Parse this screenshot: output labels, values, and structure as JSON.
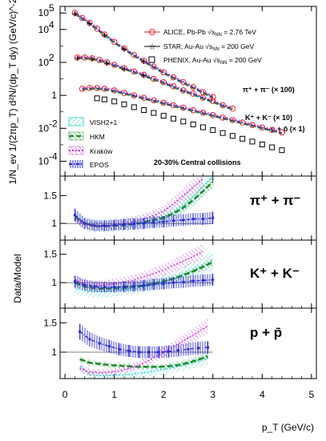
{
  "chart_data": {
    "type": "scatter",
    "x_label": "p_T (GeV/c)",
    "x_ticks": [
      "0",
      "1",
      "2",
      "3",
      "4",
      "5"
    ],
    "xlim": [
      -0.1,
      5.1
    ],
    "top": {
      "y_label": "1/N_ev 1/(2πp_T) d²N/(dp_T dy) (GeV/c)^-2",
      "y_scale": "log",
      "ylim_log10": [
        -4.9,
        5.4
      ],
      "y_ticks": [
        {
          "exp": 5,
          "label": "10"
        },
        {
          "exp": 4,
          "label": "10"
        },
        {
          "exp": 2,
          "label": "10"
        },
        {
          "exp": 0,
          "label": "1"
        },
        {
          "exp": -2,
          "label": "10"
        },
        {
          "exp": -4,
          "label": "10"
        }
      ],
      "y_tick_exponents": [
        "5",
        "4",
        "2",
        "",
        "-2",
        "-4"
      ],
      "legend": [
        {
          "label_pre": "ALICE, Pb-Pb √s",
          "label_sub": "NN",
          "label_post": " = 2.76 TeV",
          "marker": "circle-open",
          "color": "#e8282b"
        },
        {
          "label_pre": "STAR, Au-Au √s",
          "label_sub": "NN",
          "label_post": " = 200 GeV",
          "marker": "star",
          "color": "#000000"
        },
        {
          "label_pre": "PHENIX, Au-Au √s",
          "label_sub": "NN",
          "label_post": " = 200 GeV",
          "marker": "square-open",
          "color": "#000000"
        }
      ],
      "models": [
        {
          "name": "VISH2+1",
          "color": "#3fd7d7"
        },
        {
          "name": "HKM",
          "color": "#1c8f2a"
        },
        {
          "name": "Kraków",
          "color": "#d23ed2"
        },
        {
          "name": "EPOS",
          "color": "#2b2bd0"
        }
      ],
      "annotations": {
        "pions": "π⁺ + π⁻ (× 100)",
        "kaons": "K⁺ + K⁻ (× 10)",
        "protons": "p + p̄ (× 1)",
        "centrality": "20-30% Central collisions"
      },
      "series": [
        {
          "name": "π⁺ + π⁻ (× 100)",
          "scale": 100,
          "x": [
            0.2,
            0.35,
            0.5,
            0.65,
            0.8,
            1.0,
            1.2,
            1.4,
            1.6,
            1.8,
            2.0,
            2.2,
            2.4,
            2.6,
            2.8,
            3.0
          ],
          "log10_y": [
            5.0,
            4.7,
            4.4,
            4.05,
            3.7,
            3.25,
            2.85,
            2.45,
            2.1,
            1.75,
            1.4,
            1.1,
            0.8,
            0.5,
            0.2,
            -0.1
          ]
        },
        {
          "name": "K⁺ + K⁻ (× 10)",
          "scale": 10,
          "x": [
            0.25,
            0.4,
            0.55,
            0.7,
            0.85,
            1.0,
            1.2,
            1.4,
            1.6,
            1.8,
            2.0,
            2.2,
            2.4,
            2.6,
            2.8,
            3.0,
            3.2,
            3.4
          ],
          "log10_y": [
            2.3,
            2.3,
            2.25,
            2.15,
            2.0,
            1.85,
            1.65,
            1.45,
            1.25,
            1.0,
            0.8,
            0.55,
            0.3,
            0.1,
            -0.15,
            -0.35,
            -0.6,
            -0.8
          ]
        },
        {
          "name": "p + p̄ (× 1)",
          "scale": 1,
          "x": [
            0.35,
            0.5,
            0.65,
            0.8,
            1.0,
            1.2,
            1.4,
            1.6,
            1.8,
            2.0,
            2.2,
            2.4,
            2.6,
            2.8,
            3.0,
            3.2,
            3.4,
            3.6,
            3.8,
            4.0,
            4.2,
            4.4
          ],
          "log10_y": [
            0.4,
            0.45,
            0.45,
            0.4,
            0.3,
            0.15,
            0.0,
            -0.15,
            -0.3,
            -0.45,
            -0.6,
            -0.75,
            -0.9,
            -1.05,
            -1.2,
            -1.35,
            -1.5,
            -1.65,
            -1.8,
            -1.95,
            -2.1,
            -2.25
          ]
        }
      ]
    },
    "ratio_label": "Data/Model",
    "ratio_panels": [
      {
        "label": "π⁺ + π⁻",
        "ylim": [
          0.7,
          1.85
        ],
        "y_ticks": [
          1,
          1.5
        ],
        "curves": {
          "VISH2+1": {
            "x": [
              0.2,
              0.4,
              0.6,
              0.8,
              1.0,
              1.2,
              1.4,
              1.6,
              1.8,
              2.0,
              2.2,
              2.4,
              2.6,
              2.8,
              3.0
            ],
            "y": [
              1.1,
              1.0,
              0.96,
              0.95,
              0.96,
              0.98,
              1.0,
              1.03,
              1.07,
              1.12,
              1.2,
              1.32,
              1.48,
              1.68,
              1.85
            ]
          },
          "HKM": {
            "x": [
              0.2,
              0.4,
              0.6,
              0.8,
              1.0,
              1.2,
              1.4,
              1.6,
              1.8,
              2.0,
              2.2,
              2.4,
              2.6,
              2.8,
              3.0
            ],
            "y": [
              1.12,
              1.0,
              0.95,
              0.95,
              0.96,
              0.97,
              0.99,
              1.02,
              1.06,
              1.1,
              1.18,
              1.28,
              1.42,
              1.58,
              1.75
            ]
          },
          "Kraków": {
            "x": [
              0.2,
              0.4,
              0.6,
              0.8,
              1.0,
              1.2,
              1.4,
              1.6,
              1.8,
              2.0,
              2.2,
              2.4,
              2.6,
              2.8
            ],
            "y": [
              1.08,
              0.98,
              0.95,
              0.95,
              0.97,
              1.0,
              1.03,
              1.08,
              1.14,
              1.22,
              1.35,
              1.5,
              1.65,
              1.8
            ]
          },
          "EPOS": {
            "x": [
              0.2,
              0.4,
              0.6,
              0.8,
              1.0,
              1.2,
              1.4,
              1.6,
              1.8,
              2.0,
              2.2,
              2.4,
              2.6,
              2.8,
              3.0
            ],
            "y": [
              1.15,
              1.0,
              0.96,
              0.96,
              0.97,
              0.98,
              0.99,
              1.0,
              1.02,
              1.03,
              1.05,
              1.06,
              1.08,
              1.08,
              1.1
            ]
          }
        }
      },
      {
        "label": "K⁺ + K⁻",
        "ylim": [
          0.55,
          1.75
        ],
        "y_ticks": [
          1,
          1.5
        ],
        "curves": {
          "VISH2+1": {
            "x": [
              0.2,
              0.4,
              0.6,
              0.8,
              1.0,
              1.2,
              1.4,
              1.6,
              1.8,
              2.0,
              2.2,
              2.4,
              2.6,
              2.8,
              3.0
            ],
            "y": [
              0.9,
              0.86,
              0.84,
              0.84,
              0.86,
              0.88,
              0.9,
              0.93,
              0.97,
              1.02,
              1.08,
              1.15,
              1.22,
              1.3,
              1.4
            ]
          },
          "HKM": {
            "x": [
              0.2,
              0.4,
              0.6,
              0.8,
              1.0,
              1.2,
              1.4,
              1.6,
              1.8,
              2.0,
              2.2,
              2.4,
              2.6,
              2.8,
              3.0
            ],
            "y": [
              1.0,
              0.93,
              0.9,
              0.89,
              0.9,
              0.91,
              0.93,
              0.95,
              0.98,
              1.02,
              1.07,
              1.13,
              1.2,
              1.28,
              1.36
            ]
          },
          "Kraków": {
            "x": [
              0.2,
              0.4,
              0.6,
              0.8,
              1.0,
              1.2,
              1.4,
              1.6,
              1.8,
              2.0,
              2.2,
              2.4,
              2.6,
              2.8
            ],
            "y": [
              1.05,
              0.97,
              0.95,
              0.96,
              0.98,
              1.01,
              1.05,
              1.1,
              1.16,
              1.22,
              1.3,
              1.38,
              1.46,
              1.55
            ]
          },
          "EPOS": {
            "x": [
              0.2,
              0.4,
              0.6,
              0.8,
              1.0,
              1.2,
              1.4,
              1.6,
              1.8,
              2.0,
              2.2,
              2.4,
              2.6,
              2.8,
              3.0
            ],
            "y": [
              1.02,
              0.96,
              0.93,
              0.92,
              0.92,
              0.93,
              0.94,
              0.95,
              0.97,
              0.98,
              1.0,
              1.01,
              1.03,
              1.04,
              1.05
            ]
          }
        }
      },
      {
        "label": "p + p̄",
        "ylim": [
          0.55,
          1.75
        ],
        "y_ticks": [
          1,
          1.5
        ],
        "curves": {
          "VISH2+1": {
            "x": [
              0.3,
              0.5,
              0.7,
              0.9,
              1.1,
              1.3,
              1.5,
              1.7,
              1.9,
              2.1,
              2.3,
              2.5,
              2.7,
              2.9
            ],
            "y": [
              0.75,
              0.62,
              0.6,
              0.6,
              0.61,
              0.62,
              0.64,
              0.66,
              0.69,
              0.72,
              0.76,
              0.8,
              0.85,
              0.9
            ]
          },
          "HKM": {
            "x": [
              0.3,
              0.5,
              0.7,
              0.9,
              1.1,
              1.3,
              1.5,
              1.7,
              1.9,
              2.1,
              2.3,
              2.5,
              2.7,
              2.9
            ],
            "y": [
              0.88,
              0.82,
              0.8,
              0.78,
              0.77,
              0.76,
              0.75,
              0.75,
              0.75,
              0.76,
              0.78,
              0.82,
              0.87,
              0.93
            ]
          },
          "Kraków": {
            "x": [
              0.3,
              0.5,
              0.7,
              0.9,
              1.1,
              1.3,
              1.5,
              1.7,
              1.9,
              2.1,
              2.3,
              2.5,
              2.7,
              2.9
            ],
            "y": [
              0.72,
              0.66,
              0.65,
              0.66,
              0.68,
              0.72,
              0.78,
              0.86,
              0.95,
              1.04,
              1.14,
              1.24,
              1.34,
              1.45
            ]
          },
          "EPOS": {
            "x": [
              0.3,
              0.5,
              0.7,
              0.9,
              1.1,
              1.3,
              1.5,
              1.7,
              1.9,
              2.1,
              2.3,
              2.5,
              2.7,
              2.9
            ],
            "y": [
              1.35,
              1.22,
              1.15,
              1.1,
              1.05,
              1.02,
              1.0,
              1.0,
              1.0,
              1.01,
              1.03,
              1.05,
              1.07,
              1.08
            ]
          }
        }
      }
    ]
  }
}
